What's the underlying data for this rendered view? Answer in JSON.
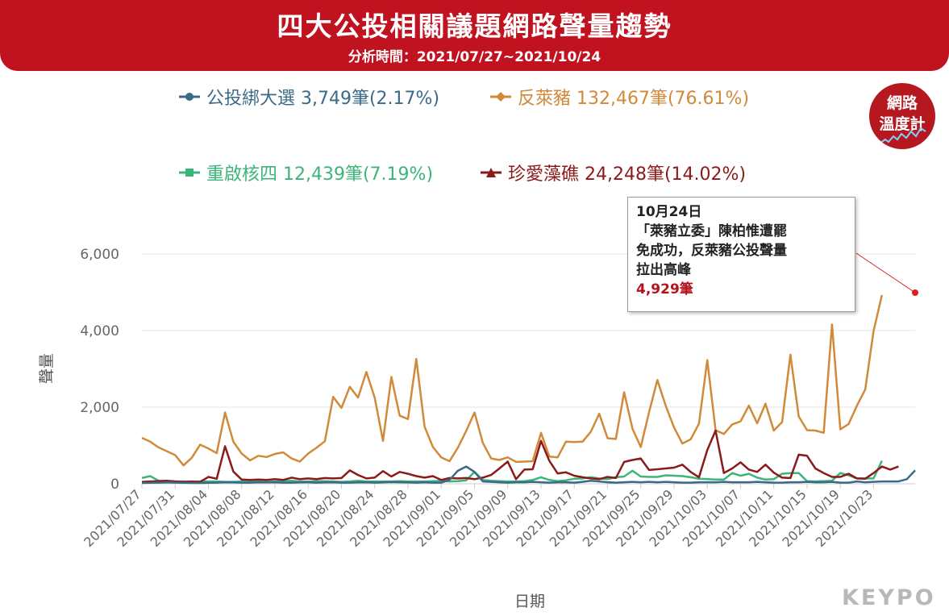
{
  "header": {
    "title": "四大公投相關議題網路聲量趨勢",
    "subtitle": "分析時間：2021/07/27~2021/10/24"
  },
  "badge": {
    "line1": "網路",
    "line2": "溫度計"
  },
  "logo": "KEYPO",
  "tooltip": {
    "date": "10月24日",
    "line1": "「萊豬立委」陳柏惟遭罷",
    "line2": "免成功，反萊豬公投聲量",
    "line3": "拉出高峰",
    "value": "4,929筆"
  },
  "colors": {
    "header": "#c1121f",
    "s1": "#3b6a87",
    "s2": "#d08a3a",
    "s3": "#3cb57a",
    "s4": "#8b1a1a"
  },
  "chart_data": {
    "type": "line",
    "xlabel": "日期",
    "ylabel": "聲量",
    "ylim": [
      0,
      7000
    ],
    "yticks": [
      0,
      2000,
      4000,
      6000
    ],
    "ytick_labels": [
      "0",
      "2,000",
      "4,000",
      "6,000"
    ],
    "xtick_labels": [
      "2021/07/27",
      "2021/07/31",
      "2021/08/04",
      "2021/08/08",
      "2021/08/12",
      "2021/08/16",
      "2021/08/20",
      "2021/08/24",
      "2021/08/28",
      "2021/09/01",
      "2021/09/05",
      "2021/09/09",
      "2021/09/13",
      "2021/09/17",
      "2021/09/21",
      "2021/09/25",
      "2021/09/29",
      "2021/10/03",
      "2021/10/07",
      "2021/10/11",
      "2021/10/15",
      "2021/10/19",
      "2021/10/23"
    ],
    "series": [
      {
        "name": "公投綁大選 3,749筆(2.17%)",
        "color": "#3b6a87",
        "marker": "circle",
        "values": [
          20,
          25,
          30,
          35,
          30,
          25,
          20,
          20,
          25,
          30,
          40,
          35,
          30,
          30,
          40,
          35,
          40,
          30,
          30,
          35,
          40,
          30,
          35,
          40,
          30,
          30,
          35,
          40,
          30,
          35,
          45,
          40,
          35,
          30,
          40,
          30,
          30,
          100,
          340,
          450,
          310,
          60,
          50,
          40,
          30,
          40,
          40,
          50,
          40,
          30,
          40,
          40,
          30,
          50,
          80,
          60,
          40,
          30,
          40,
          50,
          40,
          50,
          40,
          50,
          40,
          30,
          30,
          40,
          40,
          40,
          50,
          40,
          40,
          40,
          50,
          40,
          30,
          30,
          40,
          40,
          50,
          40,
          40,
          50,
          30,
          30,
          60,
          40,
          50,
          60,
          60,
          60,
          120,
          350
        ]
      },
      {
        "name": "反萊豬 132,467筆(76.61%)",
        "color": "#d08a3a",
        "marker": "diamond",
        "values": [
          1200,
          1100,
          950,
          850,
          750,
          480,
          680,
          1020,
          920,
          800,
          1860,
          1100,
          790,
          610,
          730,
          700,
          780,
          820,
          660,
          580,
          790,
          940,
          1110,
          2270,
          1980,
          2530,
          2250,
          2920,
          2250,
          1120,
          2790,
          1780,
          1690,
          3260,
          1490,
          960,
          690,
          590,
          940,
          1380,
          1860,
          1070,
          660,
          620,
          690,
          570,
          580,
          590,
          1330,
          710,
          690,
          1100,
          1090,
          1100,
          1360,
          1830,
          1190,
          1170,
          2390,
          1440,
          960,
          1870,
          2710,
          2040,
          1470,
          1050,
          1160,
          1570,
          3230,
          1400,
          1300,
          1550,
          1630,
          2040,
          1580,
          2090,
          1390,
          1610,
          3370,
          1760,
          1400,
          1390,
          1330,
          4160,
          1420,
          1560,
          2040,
          2460,
          3980,
          4929
        ]
      },
      {
        "name": "重啟核四 12,439筆(7.19%)",
        "color": "#3cb57a",
        "marker": "square",
        "values": [
          150,
          200,
          80,
          70,
          60,
          60,
          50,
          60,
          60,
          60,
          50,
          50,
          60,
          60,
          60,
          50,
          60,
          70,
          80,
          60,
          60,
          70,
          70,
          60,
          50,
          60,
          80,
          60,
          60,
          60,
          60,
          70,
          60,
          60,
          60,
          70,
          80,
          60,
          70,
          90,
          310,
          100,
          80,
          70,
          60,
          60,
          70,
          100,
          170,
          100,
          70,
          90,
          130,
          140,
          170,
          140,
          120,
          170,
          190,
          340,
          190,
          180,
          180,
          220,
          210,
          200,
          170,
          130,
          120,
          110,
          110,
          280,
          210,
          260,
          160,
          110,
          120,
          260,
          280,
          280,
          70,
          60,
          70,
          80,
          280,
          220,
          140,
          140,
          140,
          600
        ]
      },
      {
        "name": "珍愛藻礁 24,248筆(14.02%)",
        "color": "#8b1a1a",
        "marker": "triangle",
        "values": [
          50,
          60,
          70,
          80,
          60,
          50,
          60,
          50,
          180,
          130,
          980,
          320,
          110,
          100,
          110,
          100,
          120,
          100,
          160,
          120,
          140,
          120,
          150,
          140,
          150,
          350,
          230,
          140,
          160,
          330,
          190,
          310,
          260,
          200,
          160,
          200,
          100,
          150,
          140,
          150,
          120,
          160,
          230,
          400,
          580,
          120,
          370,
          380,
          1120,
          600,
          270,
          300,
          210,
          170,
          140,
          120,
          180,
          150,
          570,
          620,
          660,
          360,
          380,
          400,
          420,
          500,
          310,
          170,
          880,
          1390,
          280,
          400,
          560,
          370,
          310,
          500,
          290,
          160,
          150,
          760,
          730,
          400,
          280,
          180,
          180,
          260,
          140,
          130,
          280,
          450,
          370,
          450
        ]
      }
    ],
    "annotation": {
      "label": "10月24日",
      "value": 4929
    }
  }
}
